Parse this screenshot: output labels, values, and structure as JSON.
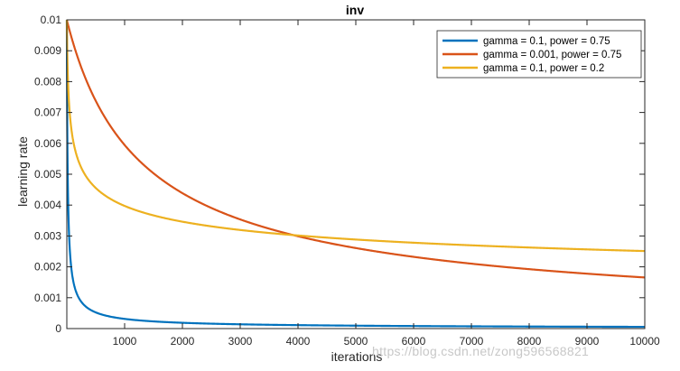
{
  "chart_data": {
    "type": "line",
    "title": "inv",
    "xlabel": "iterations",
    "ylabel": "learning rate",
    "xlim": [
      0,
      10000
    ],
    "ylim": [
      0,
      0.01
    ],
    "base_lr": 0.01,
    "xticks": [
      1000,
      2000,
      3000,
      4000,
      5000,
      6000,
      7000,
      8000,
      9000,
      10000
    ],
    "xtick_labels": [
      "1000",
      "2000",
      "3000",
      "4000",
      "5000",
      "6000",
      "7000",
      "8000",
      "9000",
      "10000"
    ],
    "yticks": [
      0,
      0.001,
      0.002,
      0.003,
      0.004,
      0.005,
      0.006,
      0.007,
      0.008,
      0.009,
      0.01
    ],
    "ytick_labels": [
      "0",
      "0.001",
      "0.002",
      "0.003",
      "0.004",
      "0.005",
      "0.006",
      "0.007",
      "0.008",
      "0.009",
      "0.01"
    ],
    "grid": false,
    "legend_position": "top-right",
    "series": [
      {
        "name": "gamma = 0.1, power = 0.75",
        "gamma": 0.1,
        "power": 0.75,
        "color": "#0072bd"
      },
      {
        "name": "gamma = 0.001, power = 0.75",
        "gamma": 0.001,
        "power": 0.75,
        "color": "#d95319"
      },
      {
        "name": "gamma = 0.1, power = 0.2",
        "gamma": 0.1,
        "power": 0.2,
        "color": "#edb120"
      }
    ]
  },
  "watermark": "https://blog.csdn.net/zong596568821"
}
